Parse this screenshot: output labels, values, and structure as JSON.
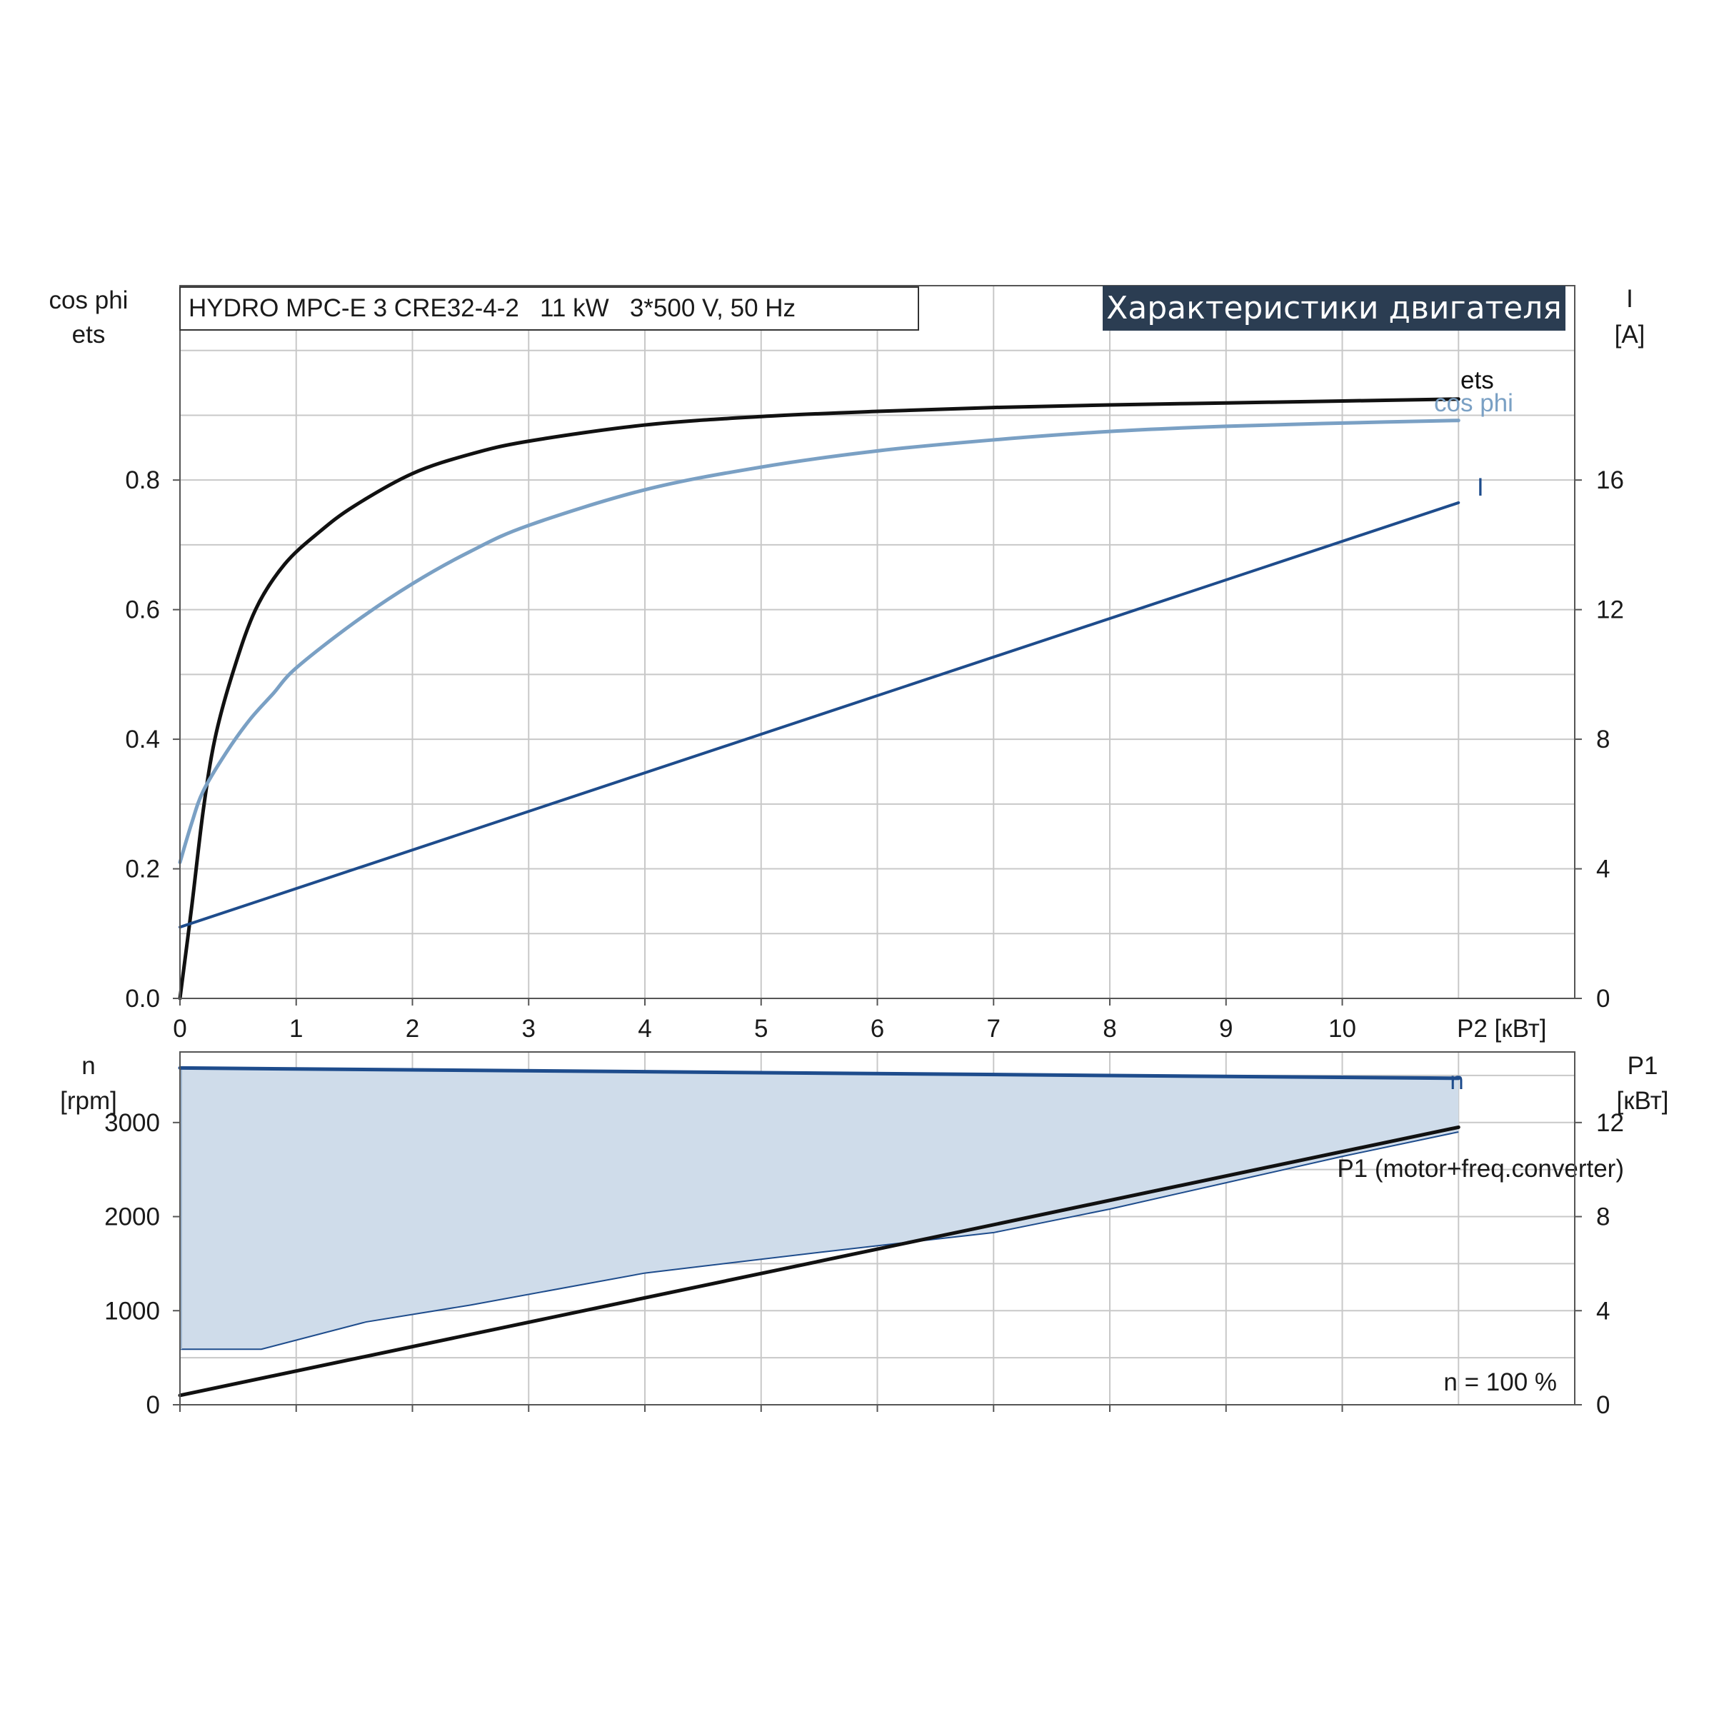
{
  "page_title": "Характеристики двигателя",
  "model_label": "HYDRO MPC-E 3 CRE32-4-2   11 kW   3*500 V, 50 Hz",
  "colors": {
    "ets": "#111111",
    "cos_phi": "#7aa0c4",
    "current": "#1e4c8c",
    "speed": "#1e4c8c",
    "speed_band_fill": "#cfdcea",
    "p1": "#111111",
    "grid": "#c8c8c8",
    "title_bg": "#2b3d52",
    "title_fg": "#ffffff"
  },
  "chart_data": [
    {
      "type": "line",
      "name": "top-panel",
      "xlabel": "P2 [кВт]",
      "x_ticks": [
        "0",
        "1",
        "2",
        "3",
        "4",
        "5",
        "6",
        "7",
        "8",
        "9",
        "10"
      ],
      "xlim": [
        0,
        12
      ],
      "y_left_label": [
        "cos phi",
        "ets"
      ],
      "y_left_ticks": [
        "0.0",
        "0.2",
        "0.4",
        "0.6",
        "0.8"
      ],
      "y_left_lim": [
        0,
        1.1
      ],
      "y_right_label": [
        "I",
        "[A]"
      ],
      "y_right_ticks": [
        "0",
        "4",
        "8",
        "12",
        "16"
      ],
      "y_right_lim": [
        0,
        22
      ],
      "grid": true,
      "series": [
        {
          "name": "ets",
          "axis": "left",
          "x": [
            0,
            0.1,
            0.2,
            0.3,
            0.45,
            0.65,
            0.9,
            1.2,
            1.5,
            2,
            2.5,
            3,
            4,
            5,
            6,
            7,
            8,
            9,
            10,
            11
          ],
          "y": [
            0.0,
            0.14,
            0.29,
            0.4,
            0.5,
            0.6,
            0.67,
            0.72,
            0.76,
            0.81,
            0.84,
            0.86,
            0.885,
            0.898,
            0.906,
            0.912,
            0.916,
            0.919,
            0.922,
            0.925
          ]
        },
        {
          "name": "cos phi",
          "axis": "left",
          "x": [
            0,
            0.1,
            0.2,
            0.4,
            0.6,
            0.8,
            1,
            1.5,
            2,
            2.5,
            3,
            4,
            5,
            6,
            7,
            8,
            9,
            10,
            11
          ],
          "y": [
            0.21,
            0.27,
            0.32,
            0.38,
            0.43,
            0.47,
            0.51,
            0.58,
            0.64,
            0.69,
            0.73,
            0.785,
            0.82,
            0.845,
            0.862,
            0.875,
            0.883,
            0.888,
            0.892
          ]
        },
        {
          "name": "I",
          "axis": "right",
          "x": [
            0,
            11
          ],
          "y": [
            2.2,
            15.3
          ]
        }
      ]
    },
    {
      "type": "area",
      "name": "bottom-panel",
      "xlim": [
        0,
        12
      ],
      "y_left_label": [
        "n",
        "[rpm]"
      ],
      "y_left_ticks": [
        "0",
        "1000",
        "2000",
        "3000"
      ],
      "y_left_lim": [
        0,
        3750
      ],
      "y_right_label": [
        "P1",
        "[кВт]"
      ],
      "y_right_ticks": [
        "0",
        "4",
        "8",
        "12"
      ],
      "y_right_lim": [
        0,
        15
      ],
      "grid": true,
      "annotation": "n = 100 %",
      "series": [
        {
          "name": "n",
          "axis": "left",
          "x": [
            0,
            11
          ],
          "y": [
            3580,
            3470
          ]
        },
        {
          "name": "n_min",
          "axis": "left",
          "x": [
            0,
            0.7,
            1.6,
            2.5,
            4,
            5.5,
            7,
            8,
            9,
            10,
            11
          ],
          "y": [
            590,
            590,
            880,
            1060,
            1400,
            1620,
            1830,
            2080,
            2360,
            2640,
            2900
          ]
        },
        {
          "name": "P1 (motor+freq.converter)",
          "axis": "right",
          "x": [
            0,
            11
          ],
          "y": [
            0.4,
            11.8
          ]
        }
      ]
    }
  ]
}
